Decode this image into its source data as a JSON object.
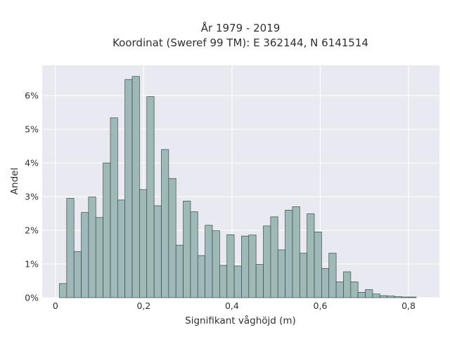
{
  "chart_data": {
    "type": "bar",
    "title_lines": [
      "År 1979 - 2019",
      "Koordinat (Sweref 99 TM): E 362144, N 6141514"
    ],
    "xlabel": "Signifikant våghöjd (m)",
    "ylabel": "Andel",
    "xlim": [
      -0.03,
      0.87
    ],
    "ylim": [
      0,
      6.9
    ],
    "bin_width": 0.0165,
    "bin_start": 0.009,
    "x_ticks": [
      0,
      0.2,
      0.4,
      0.6,
      0.8
    ],
    "x_tick_labels": [
      "0",
      "0,2",
      "0,4",
      "0,6",
      "0,8"
    ],
    "y_ticks": [
      0,
      1,
      2,
      3,
      4,
      5,
      6
    ],
    "y_tick_labels": [
      "0%",
      "1%",
      "2%",
      "3%",
      "4%",
      "5%",
      "6%"
    ],
    "values": [
      0.42,
      2.95,
      1.37,
      2.53,
      2.99,
      2.38,
      4.0,
      5.34,
      2.9,
      6.48,
      6.57,
      3.21,
      5.97,
      2.73,
      4.4,
      3.54,
      1.56,
      2.87,
      2.55,
      1.25,
      2.15,
      1.99,
      0.96,
      1.87,
      0.94,
      1.83,
      1.86,
      0.99,
      2.13,
      2.4,
      1.42,
      2.6,
      2.7,
      1.32,
      2.49,
      1.95,
      0.87,
      1.32,
      0.47,
      0.77,
      0.47,
      0.16,
      0.24,
      0.11,
      0.06,
      0.05,
      0.03,
      0.02,
      0.02
    ],
    "grid": true,
    "colors": {
      "background": "#e9e9f1",
      "grid": "#ffffff",
      "bar_fill": "#9fb8b8",
      "bar_edge": "#3a4a4a"
    }
  }
}
